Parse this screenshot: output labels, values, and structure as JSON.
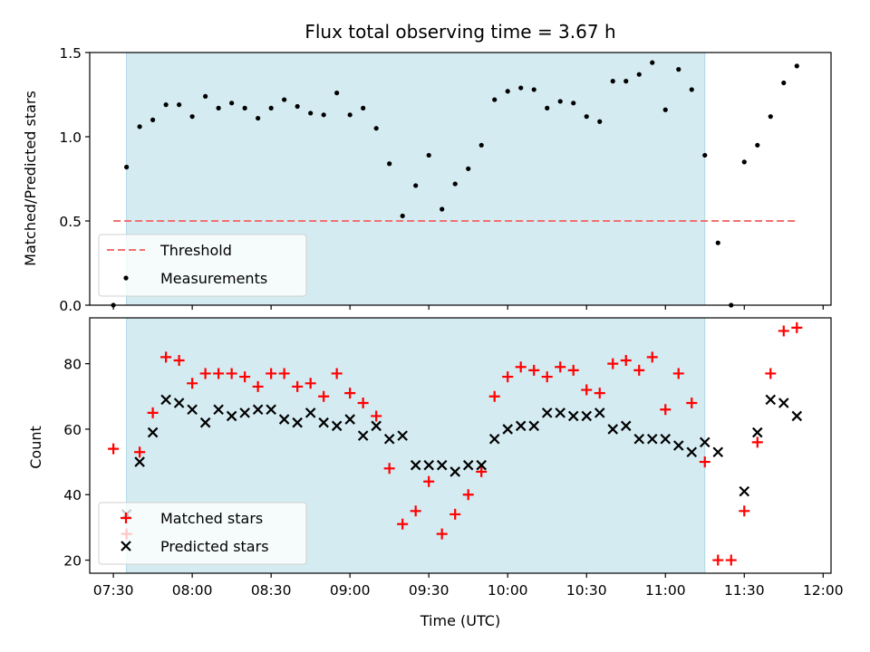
{
  "chart_data": [
    {
      "type": "scatter",
      "title": "Flux total observing time = 3.67 h",
      "xlabel": "",
      "ylabel": "Matched/Predicted stars",
      "ylim": [
        0,
        1.5
      ],
      "yticks": [
        "0.0",
        "0.5",
        "1.0",
        "1.5"
      ],
      "xlim": [
        "07:21",
        "12:03"
      ],
      "xticks": [
        "07:30",
        "08:00",
        "08:30",
        "09:00",
        "09:30",
        "10:00",
        "10:30",
        "11:00",
        "11:30",
        "12:00"
      ],
      "shaded_interval": [
        "07:35",
        "11:15"
      ],
      "shaded_color": "#d4ebf1",
      "legend_position": "lower left",
      "series": [
        {
          "name": "Threshold",
          "kind": "dashed-line",
          "color": "#f07070",
          "y": 0.5,
          "x_range": [
            "07:30",
            "11:50"
          ]
        },
        {
          "name": "Measurements",
          "kind": "dots",
          "color": "#000000",
          "points": [
            [
              "07:30",
              0.0
            ],
            [
              "07:35",
              0.82
            ],
            [
              "07:40",
              1.06
            ],
            [
              "07:45",
              1.1
            ],
            [
              "07:50",
              1.19
            ],
            [
              "07:55",
              1.19
            ],
            [
              "08:00",
              1.12
            ],
            [
              "08:05",
              1.24
            ],
            [
              "08:10",
              1.17
            ],
            [
              "08:15",
              1.2
            ],
            [
              "08:20",
              1.17
            ],
            [
              "08:25",
              1.11
            ],
            [
              "08:30",
              1.17
            ],
            [
              "08:35",
              1.22
            ],
            [
              "08:40",
              1.18
            ],
            [
              "08:45",
              1.14
            ],
            [
              "08:50",
              1.13
            ],
            [
              "08:55",
              1.26
            ],
            [
              "09:00",
              1.13
            ],
            [
              "09:05",
              1.17
            ],
            [
              "09:10",
              1.05
            ],
            [
              "09:15",
              0.84
            ],
            [
              "09:20",
              0.53
            ],
            [
              "09:25",
              0.71
            ],
            [
              "09:30",
              0.89
            ],
            [
              "09:35",
              0.57
            ],
            [
              "09:40",
              0.72
            ],
            [
              "09:45",
              0.81
            ],
            [
              "09:50",
              0.95
            ],
            [
              "09:55",
              1.22
            ],
            [
              "10:00",
              1.27
            ],
            [
              "10:05",
              1.29
            ],
            [
              "10:10",
              1.28
            ],
            [
              "10:15",
              1.17
            ],
            [
              "10:20",
              1.21
            ],
            [
              "10:25",
              1.2
            ],
            [
              "10:30",
              1.12
            ],
            [
              "10:35",
              1.09
            ],
            [
              "10:40",
              1.33
            ],
            [
              "10:45",
              1.33
            ],
            [
              "10:50",
              1.37
            ],
            [
              "10:55",
              1.44
            ],
            [
              "11:00",
              1.16
            ],
            [
              "11:05",
              1.4
            ],
            [
              "11:10",
              1.28
            ],
            [
              "11:15",
              0.89
            ],
            [
              "11:20",
              0.37
            ],
            [
              "11:25",
              0.0
            ],
            [
              "11:30",
              0.85
            ],
            [
              "11:35",
              0.95
            ],
            [
              "11:40",
              1.12
            ],
            [
              "11:45",
              1.32
            ],
            [
              "11:50",
              1.42
            ]
          ]
        }
      ]
    },
    {
      "type": "scatter",
      "title": "",
      "xlabel": "Time (UTC)",
      "ylabel": "Count",
      "ylim": [
        16,
        94
      ],
      "yticks": [
        "20",
        "40",
        "60",
        "80"
      ],
      "xlim": [
        "07:21",
        "12:03"
      ],
      "xticks": [
        "07:30",
        "08:00",
        "08:30",
        "09:00",
        "09:30",
        "10:00",
        "10:30",
        "11:00",
        "11:30",
        "12:00"
      ],
      "shaded_interval": [
        "07:35",
        "11:15"
      ],
      "shaded_color": "#d4ebf1",
      "legend_position": "lower left",
      "series": [
        {
          "name": "Matched stars",
          "marker": "plus",
          "color": "#ff0000",
          "points": [
            [
              "07:30",
              54
            ],
            [
              "07:35",
              28
            ],
            [
              "07:40",
              53
            ],
            [
              "07:45",
              65
            ],
            [
              "07:50",
              82
            ],
            [
              "07:55",
              81
            ],
            [
              "08:00",
              74
            ],
            [
              "08:05",
              77
            ],
            [
              "08:10",
              77
            ],
            [
              "08:15",
              77
            ],
            [
              "08:20",
              76
            ],
            [
              "08:25",
              73
            ],
            [
              "08:30",
              77
            ],
            [
              "08:35",
              77
            ],
            [
              "08:40",
              73
            ],
            [
              "08:45",
              74
            ],
            [
              "08:50",
              70
            ],
            [
              "08:55",
              77
            ],
            [
              "09:00",
              71
            ],
            [
              "09:05",
              68
            ],
            [
              "09:10",
              64
            ],
            [
              "09:15",
              48
            ],
            [
              "09:20",
              31
            ],
            [
              "09:25",
              35
            ],
            [
              "09:30",
              44
            ],
            [
              "09:35",
              28
            ],
            [
              "09:40",
              34
            ],
            [
              "09:45",
              40
            ],
            [
              "09:50",
              47
            ],
            [
              "09:55",
              70
            ],
            [
              "10:00",
              76
            ],
            [
              "10:05",
              79
            ],
            [
              "10:10",
              78
            ],
            [
              "10:15",
              76
            ],
            [
              "10:20",
              79
            ],
            [
              "10:25",
              78
            ],
            [
              "10:30",
              72
            ],
            [
              "10:35",
              71
            ],
            [
              "10:40",
              80
            ],
            [
              "10:45",
              81
            ],
            [
              "10:50",
              78
            ],
            [
              "10:55",
              82
            ],
            [
              "11:00",
              66
            ],
            [
              "11:05",
              77
            ],
            [
              "11:10",
              68
            ],
            [
              "11:15",
              50
            ],
            [
              "11:20",
              20
            ],
            [
              "11:25",
              20
            ],
            [
              "11:30",
              35
            ],
            [
              "11:35",
              56
            ],
            [
              "11:40",
              77
            ],
            [
              "11:45",
              90
            ],
            [
              "11:50",
              91
            ]
          ]
        },
        {
          "name": "Predicted stars",
          "marker": "x",
          "color": "#000000",
          "points": [
            [
              "07:35",
              34
            ],
            [
              "07:40",
              50
            ],
            [
              "07:45",
              59
            ],
            [
              "07:50",
              69
            ],
            [
              "07:55",
              68
            ],
            [
              "08:00",
              66
            ],
            [
              "08:05",
              62
            ],
            [
              "08:10",
              66
            ],
            [
              "08:15",
              64
            ],
            [
              "08:20",
              65
            ],
            [
              "08:25",
              66
            ],
            [
              "08:30",
              66
            ],
            [
              "08:35",
              63
            ],
            [
              "08:40",
              62
            ],
            [
              "08:45",
              65
            ],
            [
              "08:50",
              62
            ],
            [
              "08:55",
              61
            ],
            [
              "09:00",
              63
            ],
            [
              "09:05",
              58
            ],
            [
              "09:10",
              61
            ],
            [
              "09:15",
              57
            ],
            [
              "09:20",
              58
            ],
            [
              "09:25",
              49
            ],
            [
              "09:30",
              49
            ],
            [
              "09:35",
              49
            ],
            [
              "09:40",
              47
            ],
            [
              "09:45",
              49
            ],
            [
              "09:50",
              49
            ],
            [
              "09:55",
              57
            ],
            [
              "10:00",
              60
            ],
            [
              "10:05",
              61
            ],
            [
              "10:10",
              61
            ],
            [
              "10:15",
              65
            ],
            [
              "10:20",
              65
            ],
            [
              "10:25",
              64
            ],
            [
              "10:30",
              64
            ],
            [
              "10:35",
              65
            ],
            [
              "10:40",
              60
            ],
            [
              "10:45",
              61
            ],
            [
              "10:50",
              57
            ],
            [
              "10:55",
              57
            ],
            [
              "11:00",
              57
            ],
            [
              "11:05",
              55
            ],
            [
              "11:10",
              53
            ],
            [
              "11:15",
              56
            ],
            [
              "11:20",
              53
            ],
            [
              "11:30",
              41
            ],
            [
              "11:35",
              59
            ],
            [
              "11:40",
              69
            ],
            [
              "11:45",
              68
            ],
            [
              "11:50",
              64
            ]
          ]
        }
      ]
    }
  ]
}
